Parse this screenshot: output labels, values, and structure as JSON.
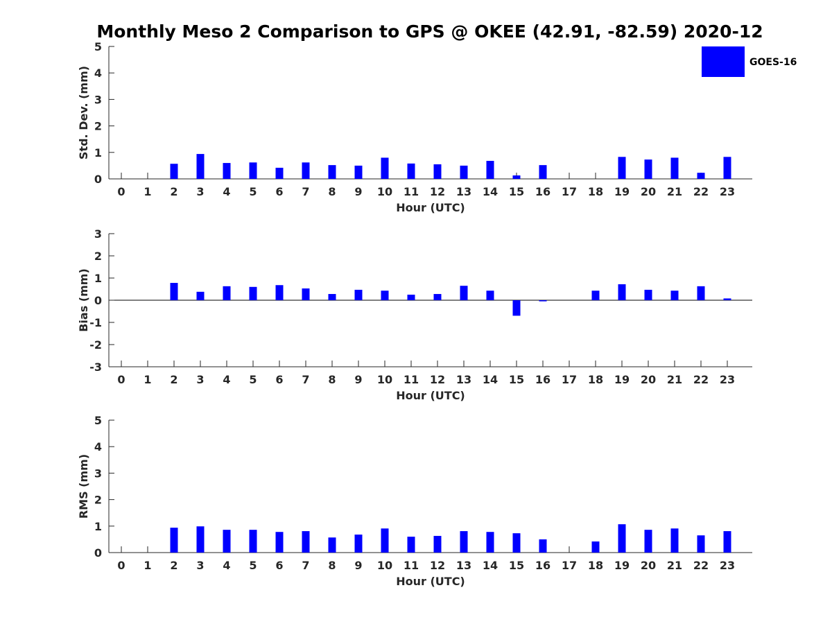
{
  "chart_data": {
    "title": "Monthly Meso 2 Comparison to GPS @ OKEE (42.91, -82.59) 2020-12",
    "legend": {
      "label": "GOES-16",
      "color": "#0000ff",
      "placement": "top-right"
    },
    "subplots": [
      {
        "type": "bar",
        "ylabel": "Std. Dev. (mm)",
        "xlabel": "Hour (UTC)",
        "ylim": [
          0,
          5
        ],
        "yticks": [
          "0",
          "1",
          "2",
          "3",
          "4",
          "5"
        ],
        "categories": [
          "0",
          "1",
          "2",
          "3",
          "4",
          "5",
          "6",
          "7",
          "8",
          "9",
          "10",
          "11",
          "12",
          "13",
          "14",
          "15",
          "16",
          "17",
          "18",
          "19",
          "20",
          "21",
          "22",
          "23"
        ],
        "values": [
          null,
          null,
          0.57,
          0.94,
          0.6,
          0.62,
          0.42,
          0.62,
          0.52,
          0.5,
          0.8,
          0.58,
          0.55,
          0.5,
          0.68,
          0.13,
          0.52,
          null,
          null,
          0.83,
          0.73,
          0.8,
          0.23,
          0.83
        ]
      },
      {
        "type": "bar",
        "ylabel": "Bias (mm)",
        "xlabel": "Hour (UTC)",
        "ylim": [
          -3,
          3
        ],
        "yticks": [
          "-3",
          "-2",
          "-1",
          "0",
          "1",
          "2",
          "3"
        ],
        "categories": [
          "0",
          "1",
          "2",
          "3",
          "4",
          "5",
          "6",
          "7",
          "8",
          "9",
          "10",
          "11",
          "12",
          "13",
          "14",
          "15",
          "16",
          "17",
          "18",
          "19",
          "20",
          "21",
          "22",
          "23"
        ],
        "values": [
          null,
          null,
          0.78,
          0.38,
          0.63,
          0.6,
          0.68,
          0.53,
          0.28,
          0.47,
          0.43,
          0.25,
          0.28,
          0.65,
          0.43,
          -0.7,
          -0.05,
          null,
          0.43,
          0.72,
          0.47,
          0.43,
          0.63,
          0.08
        ]
      },
      {
        "type": "bar",
        "ylabel": "RMS (mm)",
        "xlabel": "Hour (UTC)",
        "ylim": [
          0,
          5
        ],
        "yticks": [
          "0",
          "1",
          "2",
          "3",
          "4",
          "5"
        ],
        "categories": [
          "0",
          "1",
          "2",
          "3",
          "4",
          "5",
          "6",
          "7",
          "8",
          "9",
          "10",
          "11",
          "12",
          "13",
          "14",
          "15",
          "16",
          "17",
          "18",
          "19",
          "20",
          "21",
          "22",
          "23"
        ],
        "values": [
          null,
          null,
          0.94,
          0.99,
          0.86,
          0.86,
          0.78,
          0.81,
          0.57,
          0.68,
          0.91,
          0.6,
          0.63,
          0.81,
          0.78,
          0.73,
          0.5,
          null,
          0.42,
          1.07,
          0.86,
          0.91,
          0.65,
          0.81
        ]
      }
    ]
  }
}
